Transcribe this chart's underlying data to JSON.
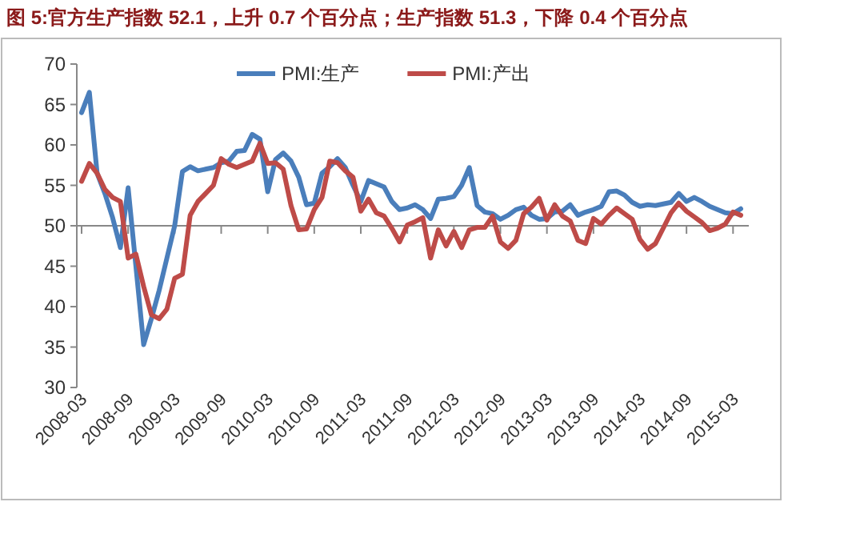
{
  "chart_data": {
    "type": "line",
    "title": "图 5:官方生产指数 52.1，上升 0.7 个百分点；生产指数 51.3，下降 0.4 个百分点",
    "categories": [
      "2008-03",
      null,
      null,
      null,
      null,
      null,
      "2008-09",
      null,
      null,
      null,
      null,
      null,
      "2009-03",
      null,
      null,
      null,
      null,
      null,
      "2009-09",
      null,
      null,
      null,
      null,
      null,
      "2010-03",
      null,
      null,
      null,
      null,
      null,
      "2010-09",
      null,
      null,
      null,
      null,
      null,
      "2011-03",
      null,
      null,
      null,
      null,
      null,
      "2011-09",
      null,
      null,
      null,
      null,
      null,
      "2012-03",
      null,
      null,
      null,
      null,
      null,
      "2012-09",
      null,
      null,
      null,
      null,
      null,
      "2013-03",
      null,
      null,
      null,
      null,
      null,
      "2013-09",
      null,
      null,
      null,
      null,
      null,
      "2014-03",
      null,
      null,
      null,
      null,
      null,
      "2014-09",
      null,
      null,
      null,
      null,
      null,
      "2015-03",
      null
    ],
    "series": [
      {
        "name": "PMI:生产",
        "color": "#4a7ebb",
        "values": [
          64,
          66.5,
          56.5,
          54,
          51,
          47.3,
          54.7,
          45,
          35.3,
          38.5,
          42,
          46,
          50,
          56.7,
          57.3,
          56.8,
          57,
          57.2,
          57.8,
          58,
          59.2,
          59.3,
          61.3,
          60.7,
          54.2,
          58.2,
          59,
          58,
          56,
          52.6,
          52.8,
          56.5,
          57.3,
          58.3,
          57.2,
          55,
          53,
          55.6,
          55.2,
          54.8,
          53,
          52,
          52.2,
          52.6,
          52,
          50.9,
          53.3,
          53.4,
          53.6,
          55,
          57.2,
          52.5,
          51.7,
          51.5,
          50.8,
          51.3,
          52,
          52.3,
          51.3,
          50.8,
          50.9,
          51.7,
          51.8,
          52.6,
          51.3,
          51.7,
          52,
          52.4,
          54.2,
          54.3,
          53.8,
          52.9,
          52.4,
          52.6,
          52.5,
          52.7,
          52.9,
          54,
          53,
          53.5,
          53,
          52.4,
          52,
          51.6,
          51.5,
          52.1
        ]
      },
      {
        "name": "PMI:产出",
        "color": "#be4b48",
        "values": [
          55.5,
          57.7,
          56.5,
          54.5,
          53.5,
          53,
          46,
          46.5,
          42.5,
          39,
          38.5,
          39.7,
          43.5,
          44,
          51.3,
          53,
          54,
          55,
          58.3,
          57.6,
          57.2,
          57.6,
          58,
          60.2,
          57.7,
          57.8,
          57,
          52.5,
          49.5,
          49.6,
          52,
          53.5,
          58,
          57.8,
          56.8,
          56,
          51.8,
          53.3,
          51.6,
          51.2,
          49.7,
          48,
          50.1,
          50.5,
          51,
          46,
          49.5,
          47.5,
          49.3,
          47.3,
          49.5,
          49.8,
          49.8,
          51.2,
          48,
          47.2,
          48.2,
          51.5,
          52.3,
          53.4,
          50.7,
          52.6,
          51.2,
          50.6,
          48.2,
          47.8,
          50.9,
          50.2,
          51.3,
          52.2,
          51.5,
          50.8,
          48.3,
          47.1,
          47.8,
          49.7,
          51.6,
          52.8,
          51.8,
          51.1,
          50.4,
          49.4,
          49.7,
          50.2,
          51.7,
          51.3
        ]
      }
    ],
    "ylim": [
      30,
      70
    ],
    "yticks": [
      30,
      35,
      40,
      45,
      50,
      55,
      60,
      65,
      70
    ],
    "ref_lines": [
      {
        "axis": "y",
        "value": 50,
        "color": "#888888"
      }
    ],
    "grid": false,
    "legend": "top",
    "marker": "none",
    "line_style": "solid"
  }
}
